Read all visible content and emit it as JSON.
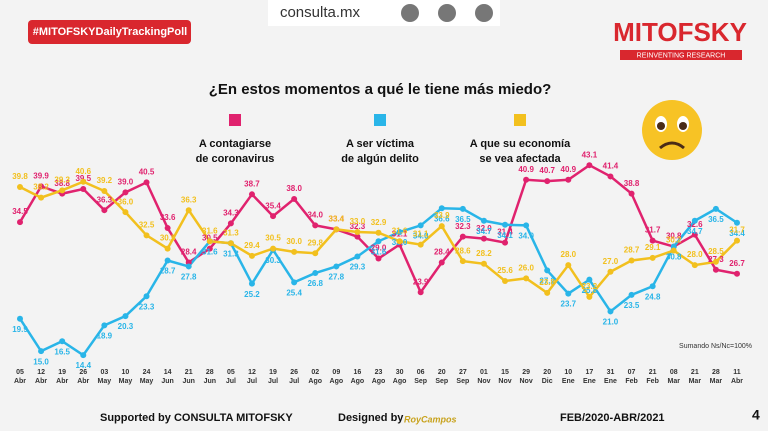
{
  "chart_data": {
    "type": "line",
    "site": "consulta.mx",
    "hashtag": "#MITOFSKYDailyTrackingPoll",
    "brand": "MITOFSKY",
    "tagline": "REINVENTING RESEARCH",
    "title": "¿En estos momentos a qué le tiene más miedo?",
    "note": "Sumando Ns/Nc=100%",
    "footer": {
      "supported": "Supported by  CONSULTA  MITOFSKY",
      "designed": "Designed by",
      "designer": "RoyCampos",
      "period": "FEB/2020-ABR/2021",
      "page": "4"
    },
    "categories": [
      "05 Abr",
      "12 Abr",
      "19 Abr",
      "26 Abr",
      "03 May",
      "10 May",
      "24 May",
      "14 Jun",
      "21 Jun",
      "28 Jun",
      "05 Jul",
      "12 Jul",
      "19 Jul",
      "26 Jul",
      "02 Ago",
      "09 Ago",
      "16 Ago",
      "23 Ago",
      "30 Ago",
      "06 Sep",
      "20 Sep",
      "27 Sep",
      "01 Nov",
      "15 Nov",
      "29 Nov",
      "20 Dic",
      "10 Ene",
      "17 Ene",
      "31 Ene",
      "07 Feb",
      "21 Feb",
      "08 Mar",
      "21 Mar",
      "28 Mar",
      "11 Abr"
    ],
    "ylim": [
      12,
      46
    ],
    "series": [
      {
        "name": "A contagiarse de coronavirus",
        "color": "#e0226e",
        "label_side": "above",
        "values": [
          34.5,
          39.9,
          38.8,
          39.5,
          36.3,
          39.0,
          40.5,
          33.6,
          28.4,
          30.5,
          34.3,
          38.7,
          35.4,
          38.0,
          34.0,
          33.4,
          32.3,
          29.0,
          31.1,
          23.9,
          28.4,
          32.3,
          32.0,
          31.4,
          40.9,
          40.7,
          40.9,
          43.1,
          41.4,
          38.8,
          31.7,
          30.8,
          32.6,
          27.3,
          26.7
        ],
        "value_labels": [
          "34.5",
          "39.9",
          "38.8",
          "39.5",
          "36.3",
          "39.0",
          "40.5",
          "33.6",
          "28.4",
          "30.5",
          "34.3",
          "38.7",
          "35.4",
          "38.0",
          "34.0",
          "33.4",
          "32.3",
          "29.0",
          "31.1",
          "23.9",
          "28.4",
          "32.3",
          "32.0",
          "31.4",
          "40.9",
          "40.7",
          "40.9",
          "43.1",
          "41.4",
          "38.8",
          "31.7",
          "30.8",
          "32.6",
          "27.3",
          "26.7"
        ]
      },
      {
        "name": "A ser víctima de algún delito",
        "color": "#29b5e8",
        "label_side": "below",
        "values": [
          19.9,
          15.0,
          16.5,
          14.4,
          18.9,
          20.3,
          23.3,
          28.7,
          27.8,
          31.6,
          31.3,
          25.2,
          30.3,
          25.4,
          26.8,
          27.8,
          29.3,
          31.6,
          33.0,
          34.0,
          36.6,
          36.5,
          34.7,
          34.1,
          34.0,
          27.2,
          23.7,
          25.8,
          21.0,
          23.5,
          24.8,
          30.8,
          34.7,
          36.5,
          34.4
        ],
        "value_labels": [
          "19.9",
          "15.0",
          "16.5",
          "14.4",
          "18.9",
          "20.3",
          "23.3",
          "28.7",
          "27.8",
          "31.6",
          "31.3",
          "25.2",
          "30.3",
          "25.4",
          "26.8",
          "27.8",
          "29.3",
          "31.6",
          "33.0",
          "34.0",
          "36.6",
          "36.5",
          "34.7",
          "34.1",
          "34.0",
          "27.2",
          "23.7",
          "25.8",
          "21.0",
          "23.5",
          "24.8",
          "30.8",
          "34.7",
          "36.5",
          "34.4"
        ]
      },
      {
        "name": "A que su economía se vea afectada",
        "color": "#f2c01e",
        "label_side": "above",
        "values": [
          39.8,
          38.2,
          39.3,
          40.6,
          39.2,
          36.0,
          32.5,
          30.5,
          36.3,
          31.6,
          31.3,
          29.4,
          30.5,
          30.0,
          29.8,
          33.4,
          33.0,
          32.9,
          31.6,
          31.1,
          33.9,
          28.6,
          28.2,
          25.6,
          26.0,
          23.8,
          28.0,
          23.2,
          27.0,
          28.7,
          29.1,
          30.2,
          28.0,
          28.5,
          31.7
        ],
        "value_labels": [
          "39.8",
          "38.2",
          "39.3",
          "40.6",
          "39.2",
          "36.0",
          "32.5",
          "30.5",
          "36.3",
          "31.6",
          "31.3",
          "29.4",
          "30.5",
          "30.0",
          "29.8",
          "33.4",
          "33.0",
          "32.9",
          "31.6",
          "31.1",
          "33.9",
          "28.6",
          "28.2",
          "25.6",
          "26.0",
          "23.8",
          "28.0",
          "23.2",
          "27.0",
          "28.7",
          "29.1",
          "30.2",
          "28.0",
          "28.5",
          "31.7"
        ]
      }
    ]
  }
}
